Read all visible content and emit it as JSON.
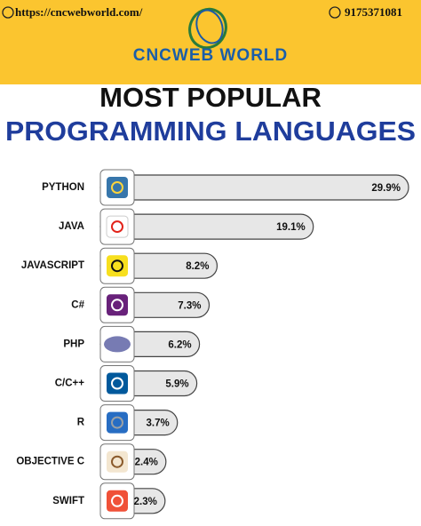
{
  "header": {
    "url": "https://cncwebworld.com/",
    "phone": "9175371081",
    "brand": "CNCWEB WORLD"
  },
  "chart_data": {
    "type": "bar",
    "title": "MOST POPULAR",
    "subtitle": "PROGRAMMING LANGUAGES",
    "categories": [
      "PYTHON",
      "JAVA",
      "JAVASCRIPT",
      "C#",
      "PHP",
      "C/C++",
      "R",
      "OBJECTIVE C",
      "SWIFT"
    ],
    "values": [
      29.9,
      19.1,
      8.2,
      7.3,
      6.2,
      5.9,
      3.7,
      2.4,
      2.3
    ],
    "value_labels": [
      "29.9%",
      "19.1%",
      "8.2%",
      "7.3%",
      "6.2%",
      "5.9%",
      "3.7%",
      "2.4%",
      "2.3%"
    ],
    "color": "#e7e7e7"
  }
}
